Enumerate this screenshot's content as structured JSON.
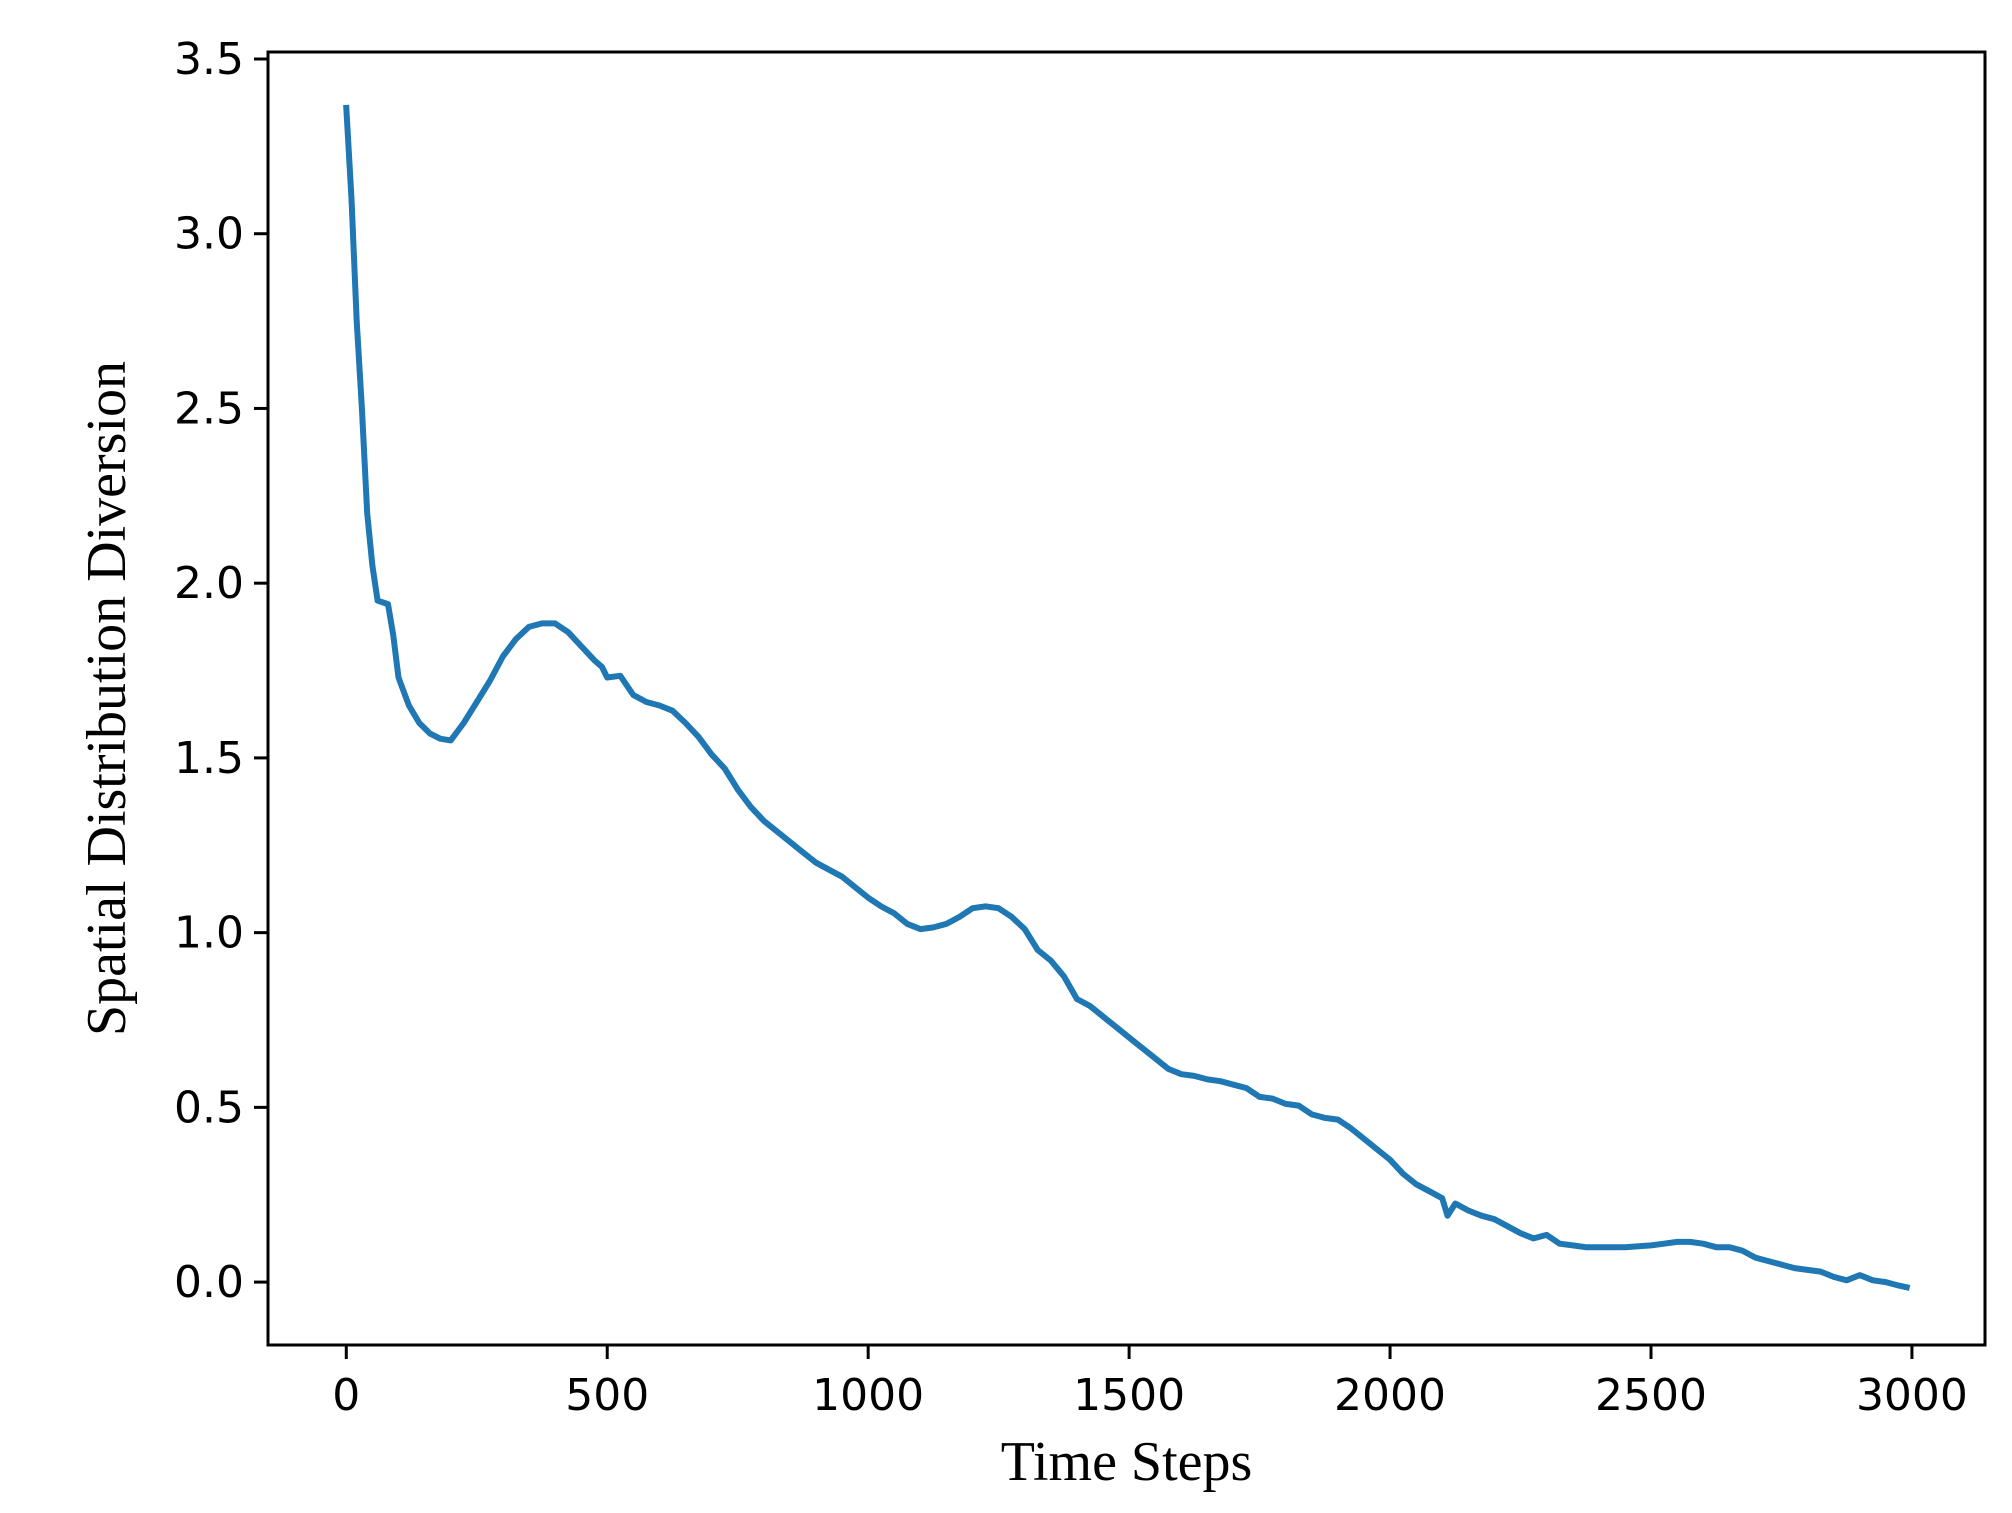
{
  "chart_data": {
    "type": "line",
    "title": "",
    "xlabel": "Time Steps",
    "ylabel": "Spatial Distribution Diversion",
    "xlim": [
      -150,
      3140
    ],
    "ylim": [
      -0.18,
      3.52
    ],
    "x_ticks": [
      0,
      500,
      1000,
      1500,
      2000,
      2500,
      3000
    ],
    "x_tick_labels": [
      "0",
      "500",
      "1000",
      "1500",
      "2000",
      "2500",
      "3000"
    ],
    "y_ticks": [
      0.0,
      0.5,
      1.0,
      1.5,
      2.0,
      2.5,
      3.0,
      3.5
    ],
    "y_tick_labels": [
      "0.0",
      "0.5",
      "1.0",
      "1.5",
      "2.0",
      "2.5",
      "3.0",
      "3.5"
    ],
    "grid": false,
    "legend": "none",
    "line_color": "#1f77b4",
    "series": [
      {
        "x": [
          0,
          10,
          20,
          30,
          40,
          50,
          60,
          80,
          90,
          100,
          120,
          140,
          160,
          180,
          200,
          225,
          250,
          275,
          300,
          325,
          350,
          375,
          400,
          425,
          450,
          475,
          490,
          500,
          525,
          550,
          575,
          600,
          625,
          650,
          675,
          700,
          725,
          750,
          775,
          800,
          825,
          850,
          875,
          900,
          925,
          950,
          975,
          1000,
          1025,
          1050,
          1075,
          1100,
          1125,
          1150,
          1175,
          1200,
          1225,
          1250,
          1275,
          1300,
          1325,
          1350,
          1375,
          1400,
          1425,
          1450,
          1475,
          1500,
          1525,
          1550,
          1575,
          1600,
          1625,
          1650,
          1675,
          1700,
          1725,
          1750,
          1775,
          1800,
          1825,
          1850,
          1875,
          1900,
          1925,
          1950,
          1975,
          2000,
          2025,
          2050,
          2075,
          2100,
          2110,
          2125,
          2150,
          2175,
          2200,
          2225,
          2250,
          2275,
          2300,
          2325,
          2350,
          2375,
          2400,
          2450,
          2500,
          2525,
          2550,
          2575,
          2600,
          2625,
          2650,
          2675,
          2700,
          2725,
          2750,
          2775,
          2800,
          2825,
          2850,
          2875,
          2900,
          2925,
          2950,
          2975,
          2990
        ],
        "y": [
          3.36,
          3.1,
          2.75,
          2.5,
          2.2,
          2.05,
          1.95,
          1.94,
          1.85,
          1.73,
          1.65,
          1.6,
          1.57,
          1.555,
          1.55,
          1.6,
          1.66,
          1.72,
          1.79,
          1.84,
          1.875,
          1.885,
          1.885,
          1.86,
          1.82,
          1.78,
          1.76,
          1.73,
          1.735,
          1.68,
          1.66,
          1.65,
          1.635,
          1.6,
          1.56,
          1.51,
          1.47,
          1.41,
          1.36,
          1.32,
          1.29,
          1.26,
          1.23,
          1.2,
          1.18,
          1.16,
          1.13,
          1.1,
          1.075,
          1.055,
          1.025,
          1.01,
          1.015,
          1.025,
          1.045,
          1.07,
          1.075,
          1.07,
          1.045,
          1.01,
          0.95,
          0.92,
          0.875,
          0.81,
          0.79,
          0.76,
          0.73,
          0.7,
          0.67,
          0.64,
          0.61,
          0.595,
          0.59,
          0.58,
          0.575,
          0.565,
          0.555,
          0.53,
          0.525,
          0.51,
          0.505,
          0.48,
          0.47,
          0.465,
          0.44,
          0.41,
          0.38,
          0.35,
          0.31,
          0.28,
          0.26,
          0.24,
          0.19,
          0.225,
          0.205,
          0.19,
          0.18,
          0.16,
          0.14,
          0.125,
          0.135,
          0.11,
          0.105,
          0.1,
          0.1,
          0.1,
          0.105,
          0.11,
          0.115,
          0.115,
          0.11,
          0.1,
          0.1,
          0.09,
          0.07,
          0.06,
          0.05,
          0.04,
          0.035,
          0.03,
          0.015,
          0.005,
          0.02,
          0.005,
          0.0,
          -0.01,
          -0.015
        ]
      }
    ]
  }
}
